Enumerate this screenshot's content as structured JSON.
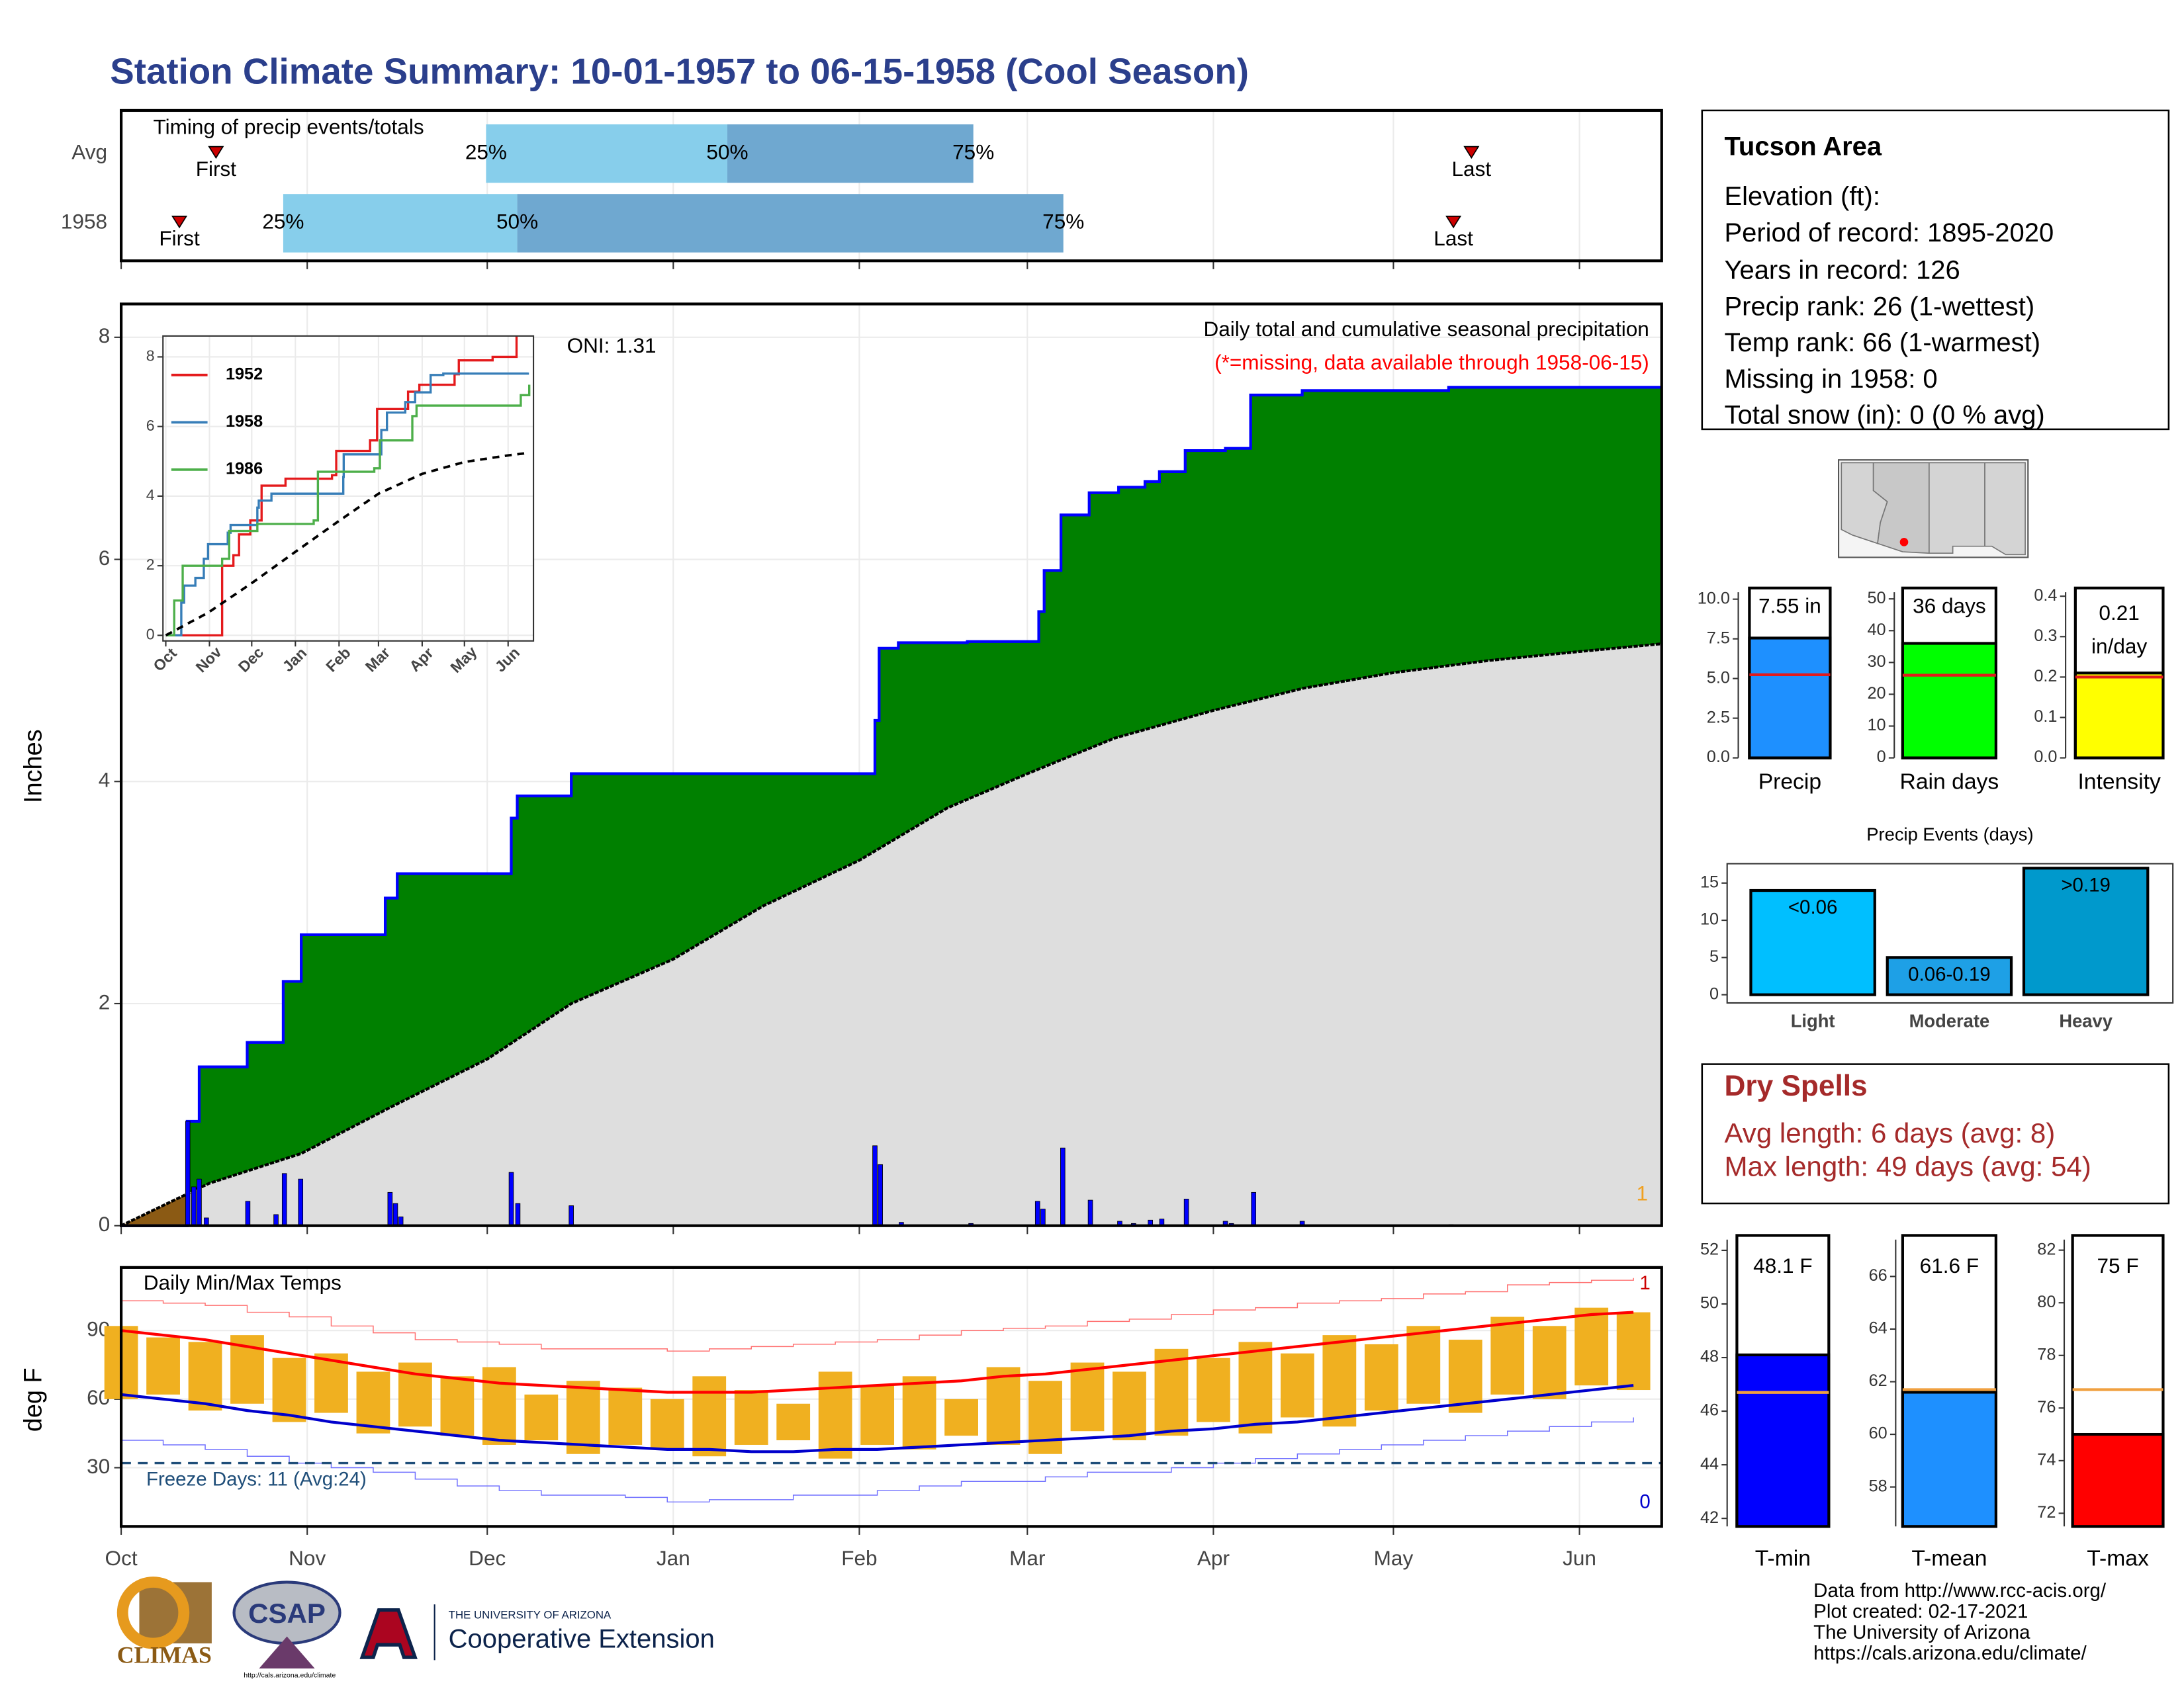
{
  "title": "Station Climate Summary: 10-01-1957 to 06-15-1958 (Cool Season)",
  "info": {
    "heading": "Tucson Area",
    "lines": [
      "Elevation (ft):",
      "Period of record: 1895-2020",
      "Years in record: 126",
      "Precip rank: 26 (1-wettest)",
      "Temp rank: 66 (1-warmest)",
      "Missing in 1958: 0",
      "Total snow (in): 0 (0 % avg)"
    ]
  },
  "dry_spells": {
    "heading": "Dry Spells",
    "lines": [
      "Avg length: 6 days (avg: 8)",
      "Max length: 49 days (avg: 54)"
    ]
  },
  "footer": [
    "Data from http://www.rcc-acis.org/",
    "Plot created: 02-17-2021",
    "The University of Arizona",
    "https://cals.arizona.edu/climate/"
  ],
  "logos": {
    "climas": "CLIMAS",
    "csap": "CSAP",
    "csap_url": "http://cals.arizona.edu/climate",
    "university": "THE UNIVERSITY OF ARIZONA",
    "extension": "Cooperative Extension"
  },
  "chart_data": [
    {
      "type": "timing",
      "title": "Timing of precip events/totals",
      "categories": [
        "Avg",
        "1958"
      ],
      "markers": [
        "First",
        "25%",
        "50%",
        "75%",
        "Last"
      ],
      "values": [
        [
          15.8,
          60.8,
          101,
          142,
          225
        ],
        [
          9.7,
          27,
          66,
          157,
          222
        ]
      ],
      "colors": [
        "#87ceeb",
        "#6fa8d0"
      ],
      "marker_color": "#cc0000",
      "xlim": [
        0,
        256.7
      ],
      "xticks": [
        0,
        31,
        61,
        92,
        123,
        151,
        182,
        212,
        243
      ],
      "grid": true
    },
    {
      "type": "cumulative",
      "title": "Daily total and cumulative seasonal precipitation",
      "subtitle": "(*=missing, data available through 1958-06-15)",
      "annotation": "ONI: 1.31",
      "corner_label": "1",
      "ylabel": "Inches",
      "xlim": [
        0,
        256.7
      ],
      "xticks": [
        0,
        31,
        61,
        92,
        123,
        151,
        182,
        212,
        243
      ],
      "ylim": [
        0,
        8.3
      ],
      "yticks": [
        0,
        2,
        4,
        6,
        8
      ],
      "grid": true,
      "series": [
        {
          "color": "#0000ff",
          "fill": "#008000",
          "step": true,
          "x": [
            0,
            11,
            13,
            21,
            27,
            30,
            44,
            46,
            65,
            66,
            75,
            125.6,
            126.3,
            129.5,
            141,
            152.9,
            153.8,
            156.6,
            161.3,
            166.2,
            170.6,
            173,
            177.3,
            184,
            188.2,
            196.8,
            221.2,
            256.7
          ],
          "values": [
            0,
            0.94,
            1.43,
            1.65,
            2.2,
            2.62,
            2.95,
            3.17,
            3.67,
            3.87,
            4.07,
            4.55,
            5.2,
            5.25,
            5.26,
            5.53,
            5.9,
            6.4,
            6.6,
            6.65,
            6.7,
            6.79,
            6.98,
            7.0,
            7.48,
            7.52,
            7.55,
            7.55
          ]
        },
        {
          "color": "#000000",
          "fill": "#dedede",
          "below_fill": "#8b5a14",
          "x": [
            0,
            14.6,
            30,
            45,
            61,
            75,
            92,
            107,
            123,
            137.6,
            151,
            165.5,
            182,
            197,
            212,
            228,
            243,
            256.7
          ],
          "values": [
            0,
            0.38,
            0.65,
            1.07,
            1.5,
            2.0,
            2.4,
            2.88,
            3.29,
            3.76,
            4.07,
            4.39,
            4.64,
            4.84,
            4.98,
            5.09,
            5.17,
            5.24
          ]
        }
      ],
      "daily": {
        "color": "#0000ff",
        "x": [
          11.1,
          12.1,
          13,
          14.2,
          21.1,
          25.8,
          27.2,
          29.9,
          44.8,
          45.7,
          46.6,
          65,
          66.1,
          75,
          125.6,
          126.5,
          130,
          141.6,
          152.7,
          153.6,
          156.9,
          161.5,
          166.4,
          168.7,
          171.5,
          173.4,
          177.5,
          184,
          185,
          188.7,
          196.8,
          221.6
        ],
        "values": [
          0.94,
          0.35,
          0.42,
          0.07,
          0.22,
          0.1,
          0.47,
          0.42,
          0.3,
          0.2,
          0.08,
          0.48,
          0.2,
          0.18,
          0.72,
          0.55,
          0.03,
          0.02,
          0.22,
          0.15,
          0.7,
          0.23,
          0.04,
          0.02,
          0.05,
          0.06,
          0.24,
          0.04,
          0.02,
          0.3,
          0.04,
          0.01
        ]
      }
    },
    {
      "type": "line",
      "xlim": [
        -2,
        261
      ],
      "xticks": [
        {
          "value": 0,
          "label": "Oct"
        },
        {
          "value": 31,
          "label": "Nov"
        },
        {
          "value": 61,
          "label": "Dec"
        },
        {
          "value": 92,
          "label": "Jan"
        },
        {
          "value": 123,
          "label": "Feb"
        },
        {
          "value": 151,
          "label": "Mar"
        },
        {
          "value": 182,
          "label": "Apr"
        },
        {
          "value": 212,
          "label": "May"
        },
        {
          "value": 243,
          "label": "Jun"
        }
      ],
      "ylim": [
        -0.16,
        8.6
      ],
      "yticks": [
        0,
        2,
        4,
        6,
        8
      ],
      "grid": true,
      "series": [
        {
          "name": "1952",
          "color": "#e41a1c",
          "x": [
            0,
            37,
            40,
            48,
            52,
            60,
            68,
            85,
            118,
            121,
            145,
            150,
            172,
            180,
            205,
            208,
            232,
            245,
            249
          ],
          "values": [
            0,
            0,
            2,
            2.3,
            2.9,
            3.3,
            4.3,
            4.5,
            4.6,
            5.3,
            5.6,
            6.5,
            7.0,
            7.2,
            7.5,
            7.9,
            8.0,
            8.0,
            8.6
          ]
        },
        {
          "name": "1958",
          "color": "#377eb8",
          "x": [
            0,
            11,
            13,
            21,
            27,
            30,
            44,
            46,
            65,
            66,
            75,
            126,
            126.3,
            153,
            157,
            170,
            177,
            188,
            197,
            257
          ],
          "values": [
            0,
            0.94,
            1.43,
            1.65,
            2.2,
            2.62,
            2.95,
            3.17,
            3.67,
            3.87,
            4.07,
            4.55,
            5.2,
            5.9,
            6.4,
            6.7,
            6.98,
            7.48,
            7.52,
            7.55
          ]
        },
        {
          "name": "1986",
          "color": "#4daf4a",
          "x": [
            0,
            6,
            12,
            35,
            40,
            45,
            65,
            105,
            108,
            148,
            152,
            175,
            178,
            252,
            258
          ],
          "values": [
            0,
            1,
            2,
            2,
            2.2,
            3,
            3.2,
            3.3,
            4.7,
            4.8,
            5.6,
            6.3,
            6.6,
            6.9,
            7.2
          ]
        },
        {
          "color": "#000000",
          "dash": true,
          "x": [
            0,
            30,
            61,
            92,
            123,
            151,
            182,
            212,
            243,
            257
          ],
          "values": [
            0,
            0.65,
            1.5,
            2.4,
            3.29,
            4.07,
            4.64,
            4.98,
            5.17,
            5.24
          ]
        }
      ]
    },
    {
      "type": "temperature",
      "title": "Daily Min/Max Temps",
      "ylabel": "deg F",
      "freeze_label": "Freeze Days: 11 (Avg:24)",
      "high_label": "1",
      "low_label": "0",
      "freeze_line": 32,
      "bar_color": "#f0b020",
      "xlim": [
        0,
        256.7
      ],
      "xticks": [
        {
          "value": 0,
          "label": "Oct"
        },
        {
          "value": 31,
          "label": "Nov"
        },
        {
          "value": 61,
          "label": "Dec"
        },
        {
          "value": 92,
          "label": "Jan"
        },
        {
          "value": 123,
          "label": "Feb"
        },
        {
          "value": 151,
          "label": "Mar"
        },
        {
          "value": 182,
          "label": "Apr"
        },
        {
          "value": 212,
          "label": "May"
        },
        {
          "value": 243,
          "label": "Jun"
        }
      ],
      "ylim": [
        4.3,
        117.6
      ],
      "yticks": [
        30,
        60,
        90
      ],
      "grid": true,
      "x": [
        0,
        7,
        14,
        21,
        28,
        35,
        42,
        49,
        56,
        63,
        70,
        77,
        84,
        91,
        98,
        105,
        112,
        119,
        126,
        133,
        140,
        147,
        154,
        161,
        168,
        175,
        182,
        189,
        196,
        203,
        210,
        217,
        224,
        231,
        238,
        245,
        252
      ],
      "daily_max": [
        92,
        87,
        85,
        88,
        78,
        80,
        72,
        76,
        70,
        74,
        62,
        68,
        65,
        60,
        70,
        64,
        58,
        72,
        66,
        70,
        60,
        74,
        68,
        76,
        72,
        82,
        78,
        85,
        80,
        88,
        84,
        92,
        86,
        96,
        92,
        100,
        98
      ],
      "daily_min": [
        60,
        62,
        55,
        58,
        50,
        54,
        45,
        48,
        44,
        40,
        42,
        36,
        40,
        38,
        35,
        40,
        42,
        34,
        40,
        38,
        44,
        40,
        36,
        46,
        42,
        44,
        50,
        45,
        52,
        48,
        55,
        58,
        54,
        62,
        60,
        66,
        64
      ],
      "series": [
        {
          "color": "#ff0000",
          "width": 2,
          "values": [
            90,
            88,
            86,
            83,
            80,
            77,
            74,
            71,
            69,
            67,
            66,
            65,
            64,
            63,
            63,
            63,
            64,
            65,
            66,
            67,
            68,
            70,
            71,
            73,
            75,
            77,
            79,
            81,
            83,
            85,
            87,
            89,
            91,
            93,
            95,
            97,
            98
          ]
        },
        {
          "color": "#0000cc",
          "width": 2,
          "values": [
            62,
            60,
            58,
            55,
            53,
            50,
            48,
            46,
            44,
            42,
            41,
            40,
            39,
            38,
            38,
            37,
            37,
            38,
            38,
            39,
            40,
            41,
            42,
            43,
            44,
            46,
            47,
            49,
            50,
            52,
            54,
            56,
            58,
            60,
            62,
            64,
            66
          ]
        },
        {
          "color": "#ff7070",
          "width": 0.7,
          "step": true,
          "values": [
            103,
            102,
            101,
            98,
            96,
            92,
            89,
            86,
            85,
            84,
            82,
            82,
            82,
            81,
            82,
            83,
            84,
            85,
            86,
            88,
            90,
            91,
            92,
            94,
            95,
            97,
            99,
            100,
            102,
            103,
            104,
            106,
            107,
            110,
            111,
            112,
            113
          ]
        },
        {
          "color": "#7070ff",
          "width": 0.7,
          "step": true,
          "values": [
            42,
            40,
            38,
            35,
            32,
            30,
            28,
            25,
            22,
            20,
            18,
            18,
            17,
            15,
            16,
            16,
            18,
            18,
            20,
            22,
            24,
            24,
            26,
            28,
            28,
            30,
            32,
            34,
            36,
            38,
            40,
            42,
            44,
            46,
            48,
            50,
            52
          ]
        }
      ]
    },
    {
      "type": "bar",
      "categories": [
        "Precip"
      ],
      "values": [
        7.55
      ],
      "value_labels": [
        "7.55 in"
      ],
      "colors": [
        "#1e90ff"
      ],
      "avg_line": [
        5.24
      ],
      "avg_color": "#e31a1c",
      "ylim": [
        0,
        10.44
      ],
      "yticks": [
        {
          "value": 0,
          "label": "0.0"
        },
        2.5,
        {
          "value": 5,
          "label": "5.0"
        },
        7.5,
        {
          "value": 10,
          "label": "10.0"
        }
      ]
    },
    {
      "type": "bar",
      "categories": [
        "Rain days"
      ],
      "values": [
        36
      ],
      "value_labels": [
        "36 days"
      ],
      "colors": [
        "#00ff00"
      ],
      "avg_line": [
        26
      ],
      "avg_color": "#e31a1c",
      "ylim": [
        0,
        52.1
      ],
      "yticks": [
        0,
        10,
        20,
        30,
        40,
        50
      ]
    },
    {
      "type": "bar",
      "categories": [
        "Intensity"
      ],
      "values": [
        0.21
      ],
      "value_labels": [
        "0.21 in/day"
      ],
      "colors": [
        "#ffff00"
      ],
      "avg_line": [
        0.2
      ],
      "avg_color": "#e31a1c",
      "ylim": [
        0,
        0.41
      ],
      "yticks": [
        {
          "value": 0,
          "label": "0.0"
        },
        0.1,
        0.2,
        0.3,
        0.4
      ]
    },
    {
      "type": "bar",
      "title": "Precip Events (days)",
      "categories": [
        "Light",
        "Moderate",
        "Heavy"
      ],
      "values": [
        14,
        5,
        17
      ],
      "value_labels": [
        "<0.06",
        "0.06-0.19",
        ">0.19"
      ],
      "colors": [
        "#00bfff",
        "#1ea0e6",
        "#0099cc"
      ],
      "ylim": [
        -1.1,
        17.6
      ],
      "yticks": [
        0,
        5,
        10,
        15
      ]
    },
    {
      "type": "bar",
      "categories": [
        "T-min"
      ],
      "values": [
        48.1
      ],
      "value_labels": [
        "48.1 F"
      ],
      "colors": [
        "#0000ff"
      ],
      "avg_line": [
        46.7
      ],
      "avg_color": "#f0a040",
      "ylim": [
        41.7,
        52.4
      ],
      "yticks": [
        42,
        44,
        46,
        48,
        50,
        52
      ]
    },
    {
      "type": "bar",
      "categories": [
        "T-mean"
      ],
      "values": [
        61.6
      ],
      "value_labels": [
        "61.6 F"
      ],
      "colors": [
        "#1e90ff"
      ],
      "avg_line": [
        61.7
      ],
      "avg_color": "#f0a040",
      "ylim": [
        56.5,
        67.4
      ],
      "yticks": [
        58,
        60,
        62,
        64,
        66
      ]
    },
    {
      "type": "bar",
      "categories": [
        "T-max"
      ],
      "values": [
        75
      ],
      "value_labels": [
        "75 F"
      ],
      "colors": [
        "#ff0000"
      ],
      "avg_line": [
        76.7
      ],
      "avg_color": "#f0a040",
      "ylim": [
        71.5,
        82.4
      ],
      "yticks": [
        72,
        74,
        76,
        78,
        80,
        82
      ]
    }
  ]
}
